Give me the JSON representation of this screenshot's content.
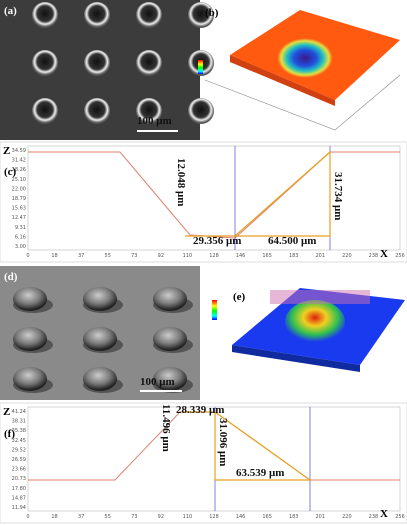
{
  "panels": {
    "a": {
      "label": "(a)",
      "scale_bar": "100 μm"
    },
    "b": {
      "label": "(b)"
    },
    "c": {
      "label": "(c)",
      "z_axis": "Z",
      "x_axis": "X",
      "yticks": [
        "34.59",
        "31.42",
        "28.26",
        "25.10",
        "22.00",
        "18.79",
        "15.63",
        "12.47",
        "9.31",
        "6.16",
        "3.00"
      ],
      "xticks": [
        "0",
        "18",
        "37",
        "55",
        "73",
        "92",
        "110",
        "128",
        "146",
        "165",
        "183",
        "201",
        "220",
        "238",
        "256"
      ],
      "annotations": [
        "12.048 μm",
        "29.356 μm",
        "64.500 μm",
        "31.734 μm"
      ]
    },
    "d": {
      "label": "(d)",
      "scale_bar": "100 μm"
    },
    "e": {
      "label": "(e)"
    },
    "f": {
      "label": "(f)",
      "z_axis": "Z",
      "x_axis": "X",
      "yticks": [
        "41.24",
        "38.31",
        "35.38",
        "32.45",
        "29.52",
        "26.59",
        "23.66",
        "20.73",
        "17.80",
        "14.87",
        "11.94"
      ],
      "xticks": [
        "0",
        "18",
        "37",
        "55",
        "73",
        "92",
        "110",
        "128",
        "146",
        "165",
        "183",
        "201",
        "220",
        "238",
        "256"
      ],
      "annotations": [
        "11.496 μm",
        "28.339 μm",
        "31.096 μm",
        "63.539 μm"
      ]
    }
  }
}
